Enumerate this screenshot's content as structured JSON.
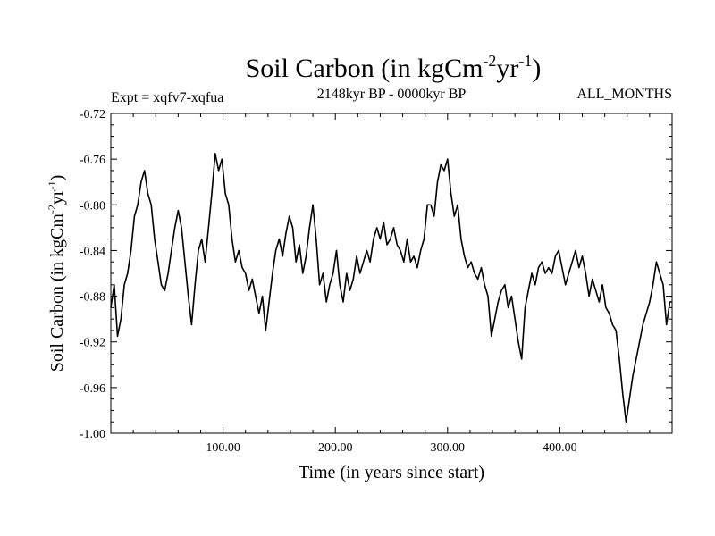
{
  "chart_data": {
    "type": "line",
    "title": {
      "main": "Soil Carbon (in kgCm",
      "exp1": "-2",
      "mid": "yr",
      "exp2": "-1",
      "end": ")"
    },
    "left_subtitle": "Expt = xqfv7-xqfua",
    "center_subtitle": "2148kyr BP - 0000kyr BP",
    "right_subtitle": "ALL_MONTHS",
    "xlabel": "Time (in years since start)",
    "ylabel": {
      "main": "Soil Carbon (in kgCm",
      "exp1": "-2",
      "mid": "yr",
      "exp2": "-1",
      "end": ")"
    },
    "xlim": [
      0,
      500
    ],
    "ylim": [
      -1.0,
      -0.72
    ],
    "x_tick_labels": [
      "100.00",
      "200.00",
      "300.00",
      "400.00"
    ],
    "x_tick_values": [
      100,
      200,
      300,
      400
    ],
    "y_tick_labels": [
      "-0.72",
      "-0.76",
      "-0.80",
      "-0.84",
      "-0.88",
      "-0.92",
      "-0.96",
      "-1.00"
    ],
    "y_tick_values": [
      -0.72,
      -0.76,
      -0.8,
      -0.84,
      -0.88,
      -0.92,
      -0.96,
      -1.0
    ],
    "series": [
      {
        "name": "Soil Carbon",
        "color": "#000000",
        "points": [
          [
            0,
            -0.89
          ],
          [
            3,
            -0.87
          ],
          [
            6,
            -0.915
          ],
          [
            9,
            -0.9
          ],
          [
            12,
            -0.87
          ],
          [
            15,
            -0.86
          ],
          [
            18,
            -0.84
          ],
          [
            21,
            -0.81
          ],
          [
            24,
            -0.8
          ],
          [
            27,
            -0.78
          ],
          [
            30,
            -0.77
          ],
          [
            33,
            -0.79
          ],
          [
            36,
            -0.8
          ],
          [
            39,
            -0.83
          ],
          [
            42,
            -0.85
          ],
          [
            45,
            -0.87
          ],
          [
            48,
            -0.875
          ],
          [
            51,
            -0.86
          ],
          [
            54,
            -0.84
          ],
          [
            57,
            -0.82
          ],
          [
            60,
            -0.805
          ],
          [
            63,
            -0.82
          ],
          [
            66,
            -0.85
          ],
          [
            69,
            -0.88
          ],
          [
            72,
            -0.905
          ],
          [
            75,
            -0.87
          ],
          [
            78,
            -0.84
          ],
          [
            81,
            -0.83
          ],
          [
            84,
            -0.85
          ],
          [
            87,
            -0.82
          ],
          [
            90,
            -0.79
          ],
          [
            93,
            -0.755
          ],
          [
            96,
            -0.77
          ],
          [
            99,
            -0.76
          ],
          [
            102,
            -0.79
          ],
          [
            105,
            -0.8
          ],
          [
            108,
            -0.83
          ],
          [
            111,
            -0.85
          ],
          [
            114,
            -0.84
          ],
          [
            117,
            -0.855
          ],
          [
            120,
            -0.86
          ],
          [
            123,
            -0.875
          ],
          [
            126,
            -0.865
          ],
          [
            129,
            -0.88
          ],
          [
            132,
            -0.895
          ],
          [
            135,
            -0.88
          ],
          [
            138,
            -0.91
          ],
          [
            141,
            -0.885
          ],
          [
            144,
            -0.86
          ],
          [
            147,
            -0.84
          ],
          [
            150,
            -0.83
          ],
          [
            153,
            -0.845
          ],
          [
            156,
            -0.825
          ],
          [
            159,
            -0.81
          ],
          [
            162,
            -0.82
          ],
          [
            165,
            -0.85
          ],
          [
            168,
            -0.835
          ],
          [
            171,
            -0.86
          ],
          [
            174,
            -0.845
          ],
          [
            177,
            -0.82
          ],
          [
            180,
            -0.8
          ],
          [
            183,
            -0.83
          ],
          [
            186,
            -0.87
          ],
          [
            189,
            -0.86
          ],
          [
            192,
            -0.885
          ],
          [
            195,
            -0.87
          ],
          [
            198,
            -0.86
          ],
          [
            201,
            -0.84
          ],
          [
            204,
            -0.87
          ],
          [
            207,
            -0.885
          ],
          [
            210,
            -0.86
          ],
          [
            213,
            -0.875
          ],
          [
            216,
            -0.865
          ],
          [
            219,
            -0.845
          ],
          [
            222,
            -0.86
          ],
          [
            225,
            -0.85
          ],
          [
            228,
            -0.84
          ],
          [
            231,
            -0.85
          ],
          [
            234,
            -0.83
          ],
          [
            237,
            -0.82
          ],
          [
            240,
            -0.83
          ],
          [
            243,
            -0.815
          ],
          [
            246,
            -0.835
          ],
          [
            249,
            -0.83
          ],
          [
            252,
            -0.82
          ],
          [
            255,
            -0.835
          ],
          [
            258,
            -0.84
          ],
          [
            261,
            -0.85
          ],
          [
            264,
            -0.83
          ],
          [
            267,
            -0.85
          ],
          [
            270,
            -0.845
          ],
          [
            273,
            -0.855
          ],
          [
            276,
            -0.84
          ],
          [
            279,
            -0.83
          ],
          [
            282,
            -0.8
          ],
          [
            285,
            -0.8
          ],
          [
            288,
            -0.81
          ],
          [
            291,
            -0.78
          ],
          [
            294,
            -0.765
          ],
          [
            297,
            -0.77
          ],
          [
            300,
            -0.76
          ],
          [
            303,
            -0.79
          ],
          [
            306,
            -0.81
          ],
          [
            309,
            -0.8
          ],
          [
            312,
            -0.83
          ],
          [
            315,
            -0.845
          ],
          [
            318,
            -0.855
          ],
          [
            321,
            -0.85
          ],
          [
            324,
            -0.86
          ],
          [
            327,
            -0.865
          ],
          [
            330,
            -0.855
          ],
          [
            333,
            -0.87
          ],
          [
            336,
            -0.88
          ],
          [
            339,
            -0.915
          ],
          [
            342,
            -0.9
          ],
          [
            345,
            -0.885
          ],
          [
            348,
            -0.875
          ],
          [
            351,
            -0.87
          ],
          [
            354,
            -0.89
          ],
          [
            357,
            -0.88
          ],
          [
            360,
            -0.9
          ],
          [
            363,
            -0.92
          ],
          [
            366,
            -0.935
          ],
          [
            369,
            -0.89
          ],
          [
            372,
            -0.875
          ],
          [
            375,
            -0.86
          ],
          [
            378,
            -0.87
          ],
          [
            381,
            -0.855
          ],
          [
            384,
            -0.85
          ],
          [
            387,
            -0.86
          ],
          [
            390,
            -0.855
          ],
          [
            393,
            -0.86
          ],
          [
            396,
            -0.845
          ],
          [
            399,
            -0.84
          ],
          [
            402,
            -0.855
          ],
          [
            405,
            -0.87
          ],
          [
            408,
            -0.86
          ],
          [
            411,
            -0.85
          ],
          [
            414,
            -0.84
          ],
          [
            417,
            -0.855
          ],
          [
            420,
            -0.845
          ],
          [
            423,
            -0.86
          ],
          [
            426,
            -0.88
          ],
          [
            429,
            -0.865
          ],
          [
            432,
            -0.875
          ],
          [
            435,
            -0.885
          ],
          [
            438,
            -0.87
          ],
          [
            441,
            -0.89
          ],
          [
            444,
            -0.895
          ],
          [
            447,
            -0.905
          ],
          [
            450,
            -0.91
          ],
          [
            453,
            -0.935
          ],
          [
            456,
            -0.965
          ],
          [
            459,
            -0.99
          ],
          [
            462,
            -0.97
          ],
          [
            465,
            -0.95
          ],
          [
            468,
            -0.935
          ],
          [
            471,
            -0.92
          ],
          [
            474,
            -0.905
          ],
          [
            477,
            -0.895
          ],
          [
            480,
            -0.885
          ],
          [
            483,
            -0.87
          ],
          [
            486,
            -0.85
          ],
          [
            489,
            -0.86
          ],
          [
            492,
            -0.87
          ],
          [
            495,
            -0.905
          ],
          [
            498,
            -0.885
          ],
          [
            500,
            -0.885
          ]
        ]
      }
    ]
  }
}
